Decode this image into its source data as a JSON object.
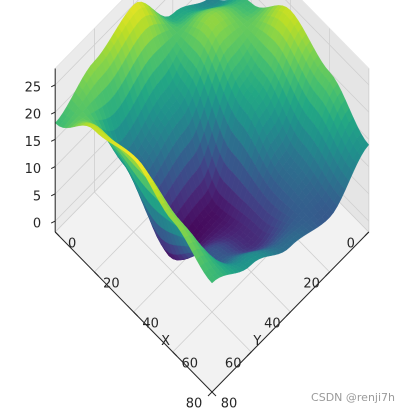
{
  "chart_data": {
    "type": "surface3d",
    "colormap": "viridis",
    "x_range": [
      0,
      80
    ],
    "y_range": [
      0,
      80
    ],
    "z_range": [
      -2,
      28
    ],
    "x_ticks": [
      0,
      20,
      40,
      60,
      80
    ],
    "y_ticks": [
      0,
      20,
      40,
      60,
      80
    ],
    "z_ticks": [
      0,
      5,
      10,
      15,
      20,
      25
    ],
    "xlabel": "X",
    "ylabel": "Y",
    "zlabel": "",
    "grid": true,
    "view": {
      "elevation_deg": 45,
      "azimuth_deg": 45
    },
    "surface_samples": {
      "grid_x": [
        0,
        20,
        40,
        60,
        80
      ],
      "grid_y": [
        0,
        20,
        40,
        60,
        80
      ],
      "z": [
        [
          12,
          18,
          24,
          20,
          14
        ],
        [
          16,
          22,
          16,
          10,
          8
        ],
        [
          25,
          14,
          2,
          4,
          10
        ],
        [
          22,
          10,
          1,
          8,
          14
        ],
        [
          18,
          24,
          26,
          22,
          18
        ]
      ]
    }
  },
  "watermark": "CSDN @renji7h"
}
